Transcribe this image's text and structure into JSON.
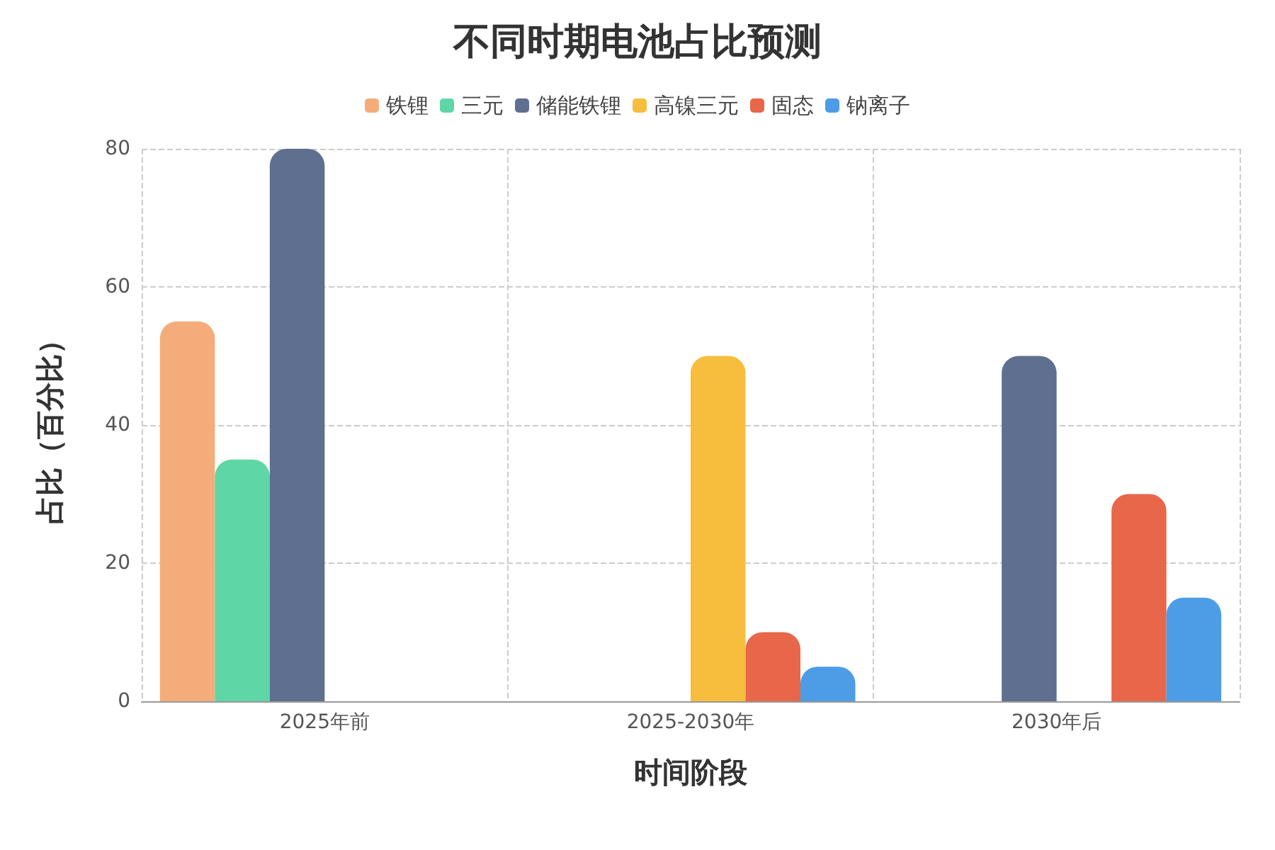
{
  "chart_data": {
    "type": "bar",
    "title": "不同时期电池占比预测",
    "xlabel": "时间阶段",
    "ylabel": "占比（百分比）",
    "categories": [
      "2025年前",
      "2025-2030年",
      "2030年后"
    ],
    "series": [
      {
        "name": "铁锂",
        "color": "#f4ad7a",
        "values": [
          55,
          null,
          null
        ]
      },
      {
        "name": "三元",
        "color": "#5ed6a6",
        "values": [
          35,
          null,
          null
        ]
      },
      {
        "name": "储能铁锂",
        "color": "#5f6f8f",
        "values": [
          80,
          null,
          50
        ]
      },
      {
        "name": "高镍三元",
        "color": "#f6be3c",
        "values": [
          null,
          50,
          null
        ]
      },
      {
        "name": "固态",
        "color": "#e8664a",
        "values": [
          null,
          10,
          30
        ]
      },
      {
        "name": "钠离子",
        "color": "#4c9de6",
        "values": [
          null,
          5,
          15
        ]
      }
    ],
    "ylim": [
      0,
      80
    ],
    "yticks": [
      0,
      20,
      40,
      60,
      80
    ],
    "grid": true,
    "legend": "top"
  }
}
